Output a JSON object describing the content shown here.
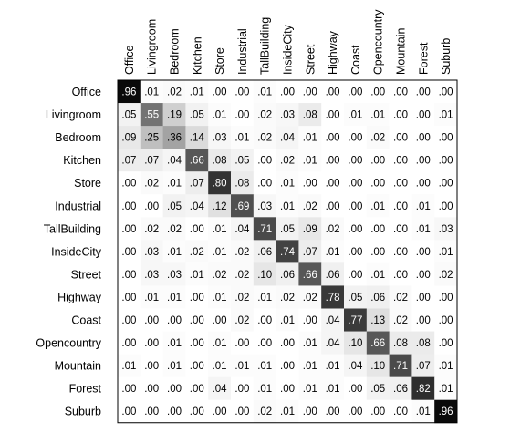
{
  "chart_data": {
    "type": "heatmap",
    "title": "",
    "xlabel": "",
    "ylabel": "",
    "categories": [
      "Office",
      "Livingroom",
      "Bedroom",
      "Kitchen",
      "Store",
      "Industrial",
      "TallBuilding",
      "InsideCity",
      "Street",
      "Highway",
      "Coast",
      "Opencountry",
      "Mountain",
      "Forest",
      "Suburb"
    ],
    "labels": [
      [
        ".96",
        ".01",
        ".02",
        ".01",
        ".00",
        ".00",
        ".01",
        ".00",
        ".00",
        ".00",
        ".00",
        ".00",
        ".00",
        ".00",
        ".00"
      ],
      [
        ".05",
        ".55",
        ".19",
        ".05",
        ".01",
        ".00",
        ".02",
        ".03",
        ".08",
        ".00",
        ".01",
        ".01",
        ".00",
        ".00",
        ".01"
      ],
      [
        ".09",
        ".25",
        ".36",
        ".14",
        ".03",
        ".01",
        ".02",
        ".04",
        ".01",
        ".00",
        ".00",
        ".02",
        ".00",
        ".00",
        ".00"
      ],
      [
        ".07",
        ".07",
        ".04",
        ".66",
        ".08",
        ".05",
        ".00",
        ".02",
        ".01",
        ".00",
        ".00",
        ".00",
        ".00",
        ".00",
        ".00"
      ],
      [
        ".00",
        ".02",
        ".01",
        ".07",
        ".80",
        ".08",
        ".00",
        ".01",
        ".00",
        ".00",
        ".00",
        ".00",
        ".00",
        ".00",
        ".00"
      ],
      [
        ".00",
        ".00",
        ".05",
        ".04",
        ".12",
        ".69",
        ".03",
        ".01",
        ".02",
        ".00",
        ".00",
        ".01",
        ".00",
        ".01",
        ".00"
      ],
      [
        ".00",
        ".02",
        ".02",
        ".00",
        ".01",
        ".04",
        ".71",
        ".05",
        ".09",
        ".02",
        ".00",
        ".00",
        ".00",
        ".01",
        ".03"
      ],
      [
        ".00",
        ".03",
        ".01",
        ".02",
        ".01",
        ".02",
        ".06",
        ".74",
        ".07",
        ".01",
        ".00",
        ".00",
        ".00",
        ".00",
        ".01"
      ],
      [
        ".00",
        ".03",
        ".03",
        ".01",
        ".02",
        ".02",
        ".10",
        ".06",
        ".66",
        ".06",
        ".00",
        ".01",
        ".00",
        ".00",
        ".02"
      ],
      [
        ".00",
        ".01",
        ".01",
        ".00",
        ".01",
        ".02",
        ".01",
        ".02",
        ".02",
        ".78",
        ".05",
        ".06",
        ".02",
        ".00",
        ".00"
      ],
      [
        ".00",
        ".00",
        ".00",
        ".00",
        ".00",
        ".02",
        ".00",
        ".01",
        ".00",
        ".04",
        ".77",
        ".13",
        ".02",
        ".00",
        ".00"
      ],
      [
        ".00",
        ".00",
        ".01",
        ".00",
        ".01",
        ".00",
        ".00",
        ".00",
        ".01",
        ".04",
        ".10",
        ".66",
        ".08",
        ".08",
        ".00"
      ],
      [
        ".01",
        ".00",
        ".01",
        ".00",
        ".01",
        ".01",
        ".01",
        ".00",
        ".01",
        ".01",
        ".04",
        ".10",
        ".71",
        ".07",
        ".01"
      ],
      [
        ".00",
        ".00",
        ".00",
        ".00",
        ".04",
        ".00",
        ".01",
        ".00",
        ".01",
        ".01",
        ".00",
        ".05",
        ".06",
        ".82",
        ".01"
      ],
      [
        ".00",
        ".00",
        ".00",
        ".00",
        ".00",
        ".00",
        ".02",
        ".01",
        ".00",
        ".00",
        ".00",
        ".00",
        ".00",
        ".01",
        ".96"
      ]
    ],
    "range": [
      0,
      1
    ],
    "colormap": "white-to-black",
    "grid": false,
    "legend": "none"
  }
}
